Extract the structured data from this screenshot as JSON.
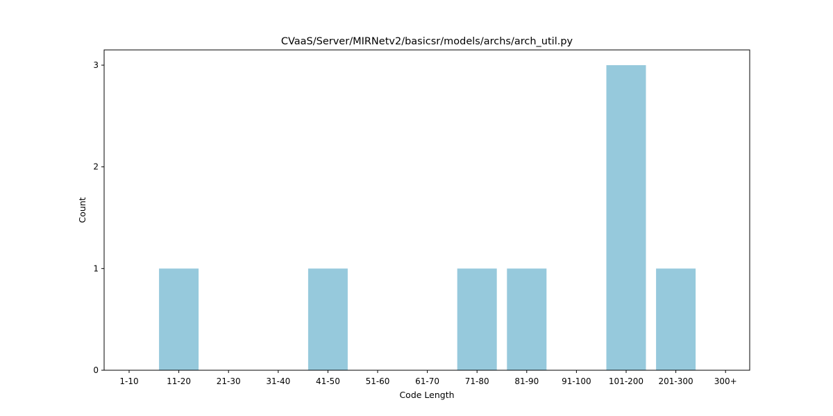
{
  "chart_data": {
    "type": "bar",
    "title": "CVaaS/Server/MIRNetv2/basicsr/models/archs/arch_util.py",
    "xlabel": "Code Length",
    "ylabel": "Count",
    "categories": [
      "1-10",
      "11-20",
      "21-30",
      "31-40",
      "41-50",
      "51-60",
      "61-70",
      "71-80",
      "81-90",
      "91-100",
      "101-200",
      "201-300",
      "300+"
    ],
    "values": [
      0,
      1,
      0,
      0,
      1,
      0,
      0,
      1,
      1,
      0,
      3,
      1,
      0
    ],
    "ylim": [
      0,
      3.15
    ],
    "yticks": [
      0,
      1,
      2,
      3
    ],
    "grid": false,
    "bar_color": "#96c9dc"
  }
}
